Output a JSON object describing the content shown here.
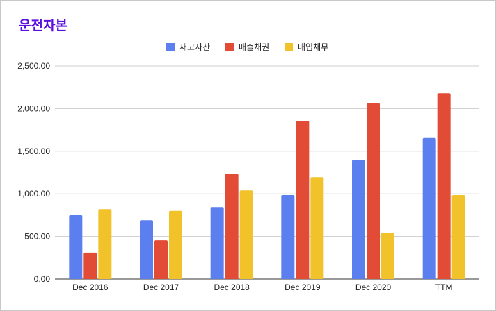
{
  "chart_data": {
    "type": "bar",
    "title": "운전자본",
    "categories": [
      "Dec 2016",
      "Dec 2017",
      "Dec 2018",
      "Dec 2019",
      "Dec 2020",
      "TTM"
    ],
    "series": [
      {
        "name": "재고자산",
        "color": "#5b7fef",
        "values": [
          750,
          690,
          845,
          985,
          1400,
          1655
        ]
      },
      {
        "name": "매출채권",
        "color": "#e24b36",
        "values": [
          310,
          455,
          1235,
          1855,
          2065,
          2180
        ]
      },
      {
        "name": "매입채무",
        "color": "#f1c22a",
        "values": [
          820,
          800,
          1040,
          1195,
          545,
          985
        ]
      }
    ],
    "y_ticks": [
      "0.00",
      "500.00",
      "1,000.00",
      "1,500.00",
      "2,000.00",
      "2,500.00"
    ],
    "ylim": [
      0,
      2500
    ],
    "grid": true,
    "legend_position": "top-center"
  }
}
